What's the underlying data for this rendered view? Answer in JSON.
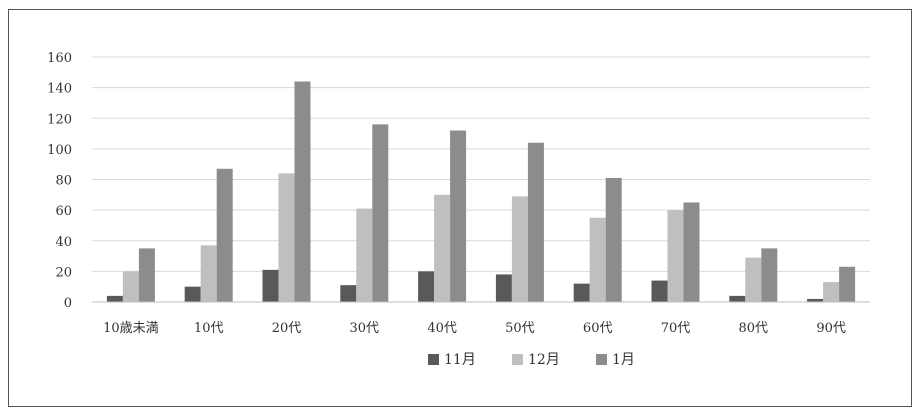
{
  "chart_data": {
    "type": "bar",
    "title": "",
    "xlabel": "",
    "ylabel": "",
    "ylim": [
      0,
      160
    ],
    "yticks": [
      0,
      20,
      40,
      60,
      80,
      100,
      120,
      140,
      160
    ],
    "grid": true,
    "legend_position": "bottom",
    "categories": [
      "10歳未満",
      "10代",
      "20代",
      "30代",
      "40代",
      "50代",
      "60代",
      "70代",
      "80代",
      "90代"
    ],
    "series": [
      {
        "name": "11月",
        "color": "#595959",
        "values": [
          4,
          10,
          21,
          11,
          20,
          18,
          12,
          14,
          4,
          2
        ]
      },
      {
        "name": "12月",
        "color": "#bfbfbf",
        "values": [
          20,
          37,
          84,
          61,
          70,
          69,
          55,
          60,
          29,
          13
        ]
      },
      {
        "name": "1月",
        "color": "#8c8c8c",
        "values": [
          35,
          87,
          144,
          116,
          112,
          104,
          81,
          65,
          35,
          23
        ]
      }
    ]
  }
}
